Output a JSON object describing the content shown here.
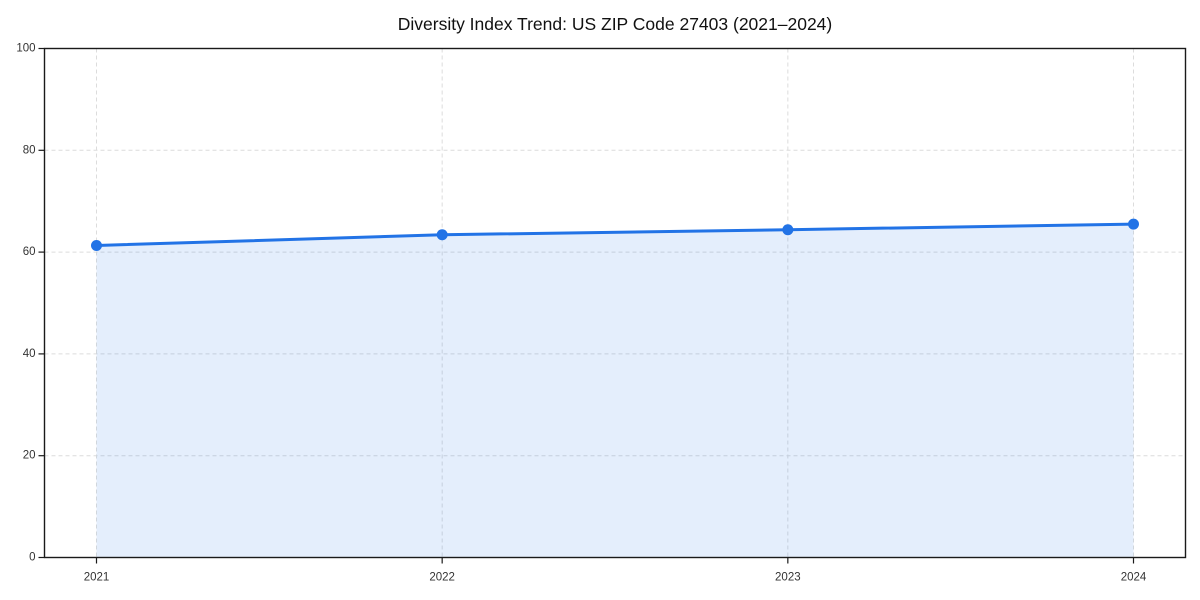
{
  "figure": {
    "background": "#ffffff"
  },
  "chart_data": {
    "type": "area",
    "title": "Diversity Index Trend: US ZIP Code 27403 (2021–2024)",
    "x": [
      "2021",
      "2022",
      "2023",
      "2024"
    ],
    "values": [
      61.3,
      63.4,
      64.4,
      65.5
    ],
    "series_name": "Diversity Index",
    "xlabel": "",
    "ylabel": "",
    "ylim": [
      0,
      100
    ],
    "yticks": [
      0,
      20,
      40,
      60,
      80,
      100
    ],
    "grid": {
      "show": true,
      "style": "dashed",
      "color": "#dcdcdc"
    },
    "legend": {
      "show": false
    },
    "colors": {
      "line": "#2273e6",
      "marker": "#2273e6",
      "fill": "rgba(34,115,230,0.12)",
      "spine": "#1a1a1a",
      "tick_label": "#333333",
      "title": "#111111"
    }
  }
}
